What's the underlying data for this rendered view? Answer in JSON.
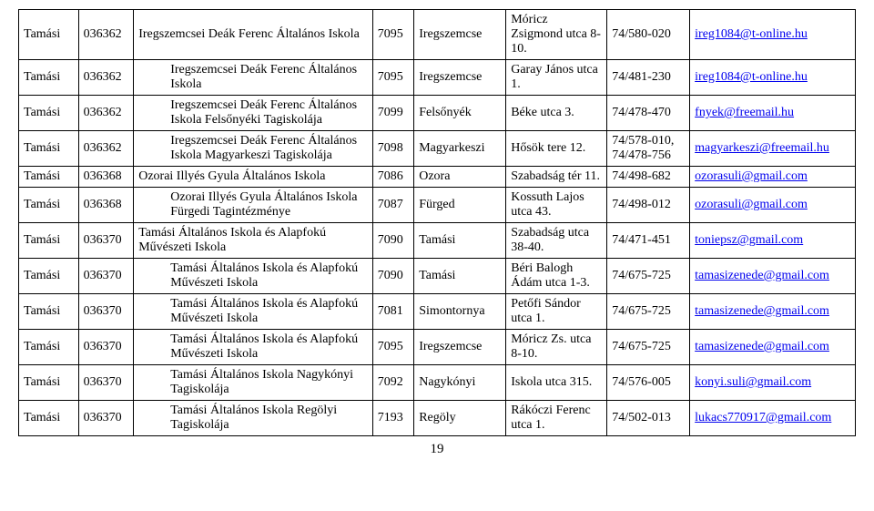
{
  "page_number": "19",
  "rows": [
    {
      "col1": "Tamási",
      "col2": "036362",
      "col3": "Iregszemcsei Deák Ferenc Általános Iskola",
      "col4": "7095",
      "col5": "Iregszemcse",
      "col6": "Móricz Zsigmond utca 8-10.",
      "col7": "74/580-020",
      "col8": "ireg1084@t-online.hu",
      "indent": false
    },
    {
      "col1": "Tamási",
      "col2": "036362",
      "col3": "Iregszemcsei Deák Ferenc Általános Iskola",
      "col4": "7095",
      "col5": "Iregszemcse",
      "col6": "Garay János utca 1.",
      "col7": "74/481-230",
      "col8": "ireg1084@t-online.hu",
      "indent": true
    },
    {
      "col1": "Tamási",
      "col2": "036362",
      "col3": "Iregszemcsei Deák Ferenc Általános Iskola Felsőnyéki Tagiskolája",
      "col4": "7099",
      "col5": "Felsőnyék",
      "col6": "Béke utca 3.",
      "col7": "74/478-470",
      "col8": "fnyek@freemail.hu",
      "indent": true
    },
    {
      "col1": "Tamási",
      "col2": "036362",
      "col3": "Iregszemcsei Deák Ferenc Általános Iskola Magyarkeszi Tagiskolája",
      "col4": "7098",
      "col5": "Magyarkeszi",
      "col6": "Hősök tere 12.",
      "col7": "74/578-010, 74/478-756",
      "col8": "magyarkeszi@freemail.hu",
      "indent": true
    },
    {
      "col1": "Tamási",
      "col2": "036368",
      "col3": "Ozorai Illyés Gyula Általános Iskola",
      "col4": "7086",
      "col5": "Ozora",
      "col6": "Szabadság tér 11.",
      "col7": "74/498-682",
      "col8": "ozorasuli@gmail.com",
      "indent": false
    },
    {
      "col1": "Tamási",
      "col2": "036368",
      "col3": "Ozorai Illyés Gyula Általános Iskola Fürgedi Tagintézménye",
      "col4": "7087",
      "col5": "Fürged",
      "col6": "Kossuth Lajos utca 43.",
      "col7": "74/498-012",
      "col8": "ozorasuli@gmail.com",
      "indent": true
    },
    {
      "col1": "Tamási",
      "col2": "036370",
      "col3": "Tamási Általános Iskola és Alapfokú Művészeti Iskola",
      "col4": "7090",
      "col5": "Tamási",
      "col6": "Szabadság utca 38-40.",
      "col7": "74/471-451",
      "col8": "toniepsz@gmail.com",
      "indent": false
    },
    {
      "col1": "Tamási",
      "col2": "036370",
      "col3": "Tamási Általános Iskola és Alapfokú Művészeti Iskola",
      "col4": "7090",
      "col5": "Tamási",
      "col6": "Béri Balogh Ádám utca 1-3.",
      "col7": "74/675-725",
      "col8": "tamasizenede@gmail.com",
      "indent": true
    },
    {
      "col1": "Tamási",
      "col2": "036370",
      "col3": "Tamási Általános Iskola és Alapfokú Művészeti Iskola",
      "col4": "7081",
      "col5": "Simontornya",
      "col6": "Petőfi Sándor utca 1.",
      "col7": "74/675-725",
      "col8": "tamasizenede@gmail.com",
      "indent": true
    },
    {
      "col1": "Tamási",
      "col2": "036370",
      "col3": "Tamási Általános Iskola és Alapfokú Művészeti Iskola",
      "col4": "7095",
      "col5": "Iregszemcse",
      "col6": "Móricz Zs. utca 8-10.",
      "col7": "74/675-725",
      "col8": "tamasizenede@gmail.com",
      "indent": true
    },
    {
      "col1": "Tamási",
      "col2": "036370",
      "col3": "Tamási Általános Iskola Nagykónyi Tagiskolája",
      "col4": "7092",
      "col5": "Nagykónyi",
      "col6": "Iskola utca 315.",
      "col7": "74/576-005",
      "col8": "konyi.suli@gmail.com",
      "indent": true
    },
    {
      "col1": "Tamási",
      "col2": "036370",
      "col3": "Tamási Általános Iskola Regölyi Tagiskolája",
      "col4": "7193",
      "col5": "Regöly",
      "col6": "Rákóczi Ferenc utca 1.",
      "col7": "74/502-013",
      "col8": "lukacs770917@gmail.com",
      "indent": true
    }
  ]
}
